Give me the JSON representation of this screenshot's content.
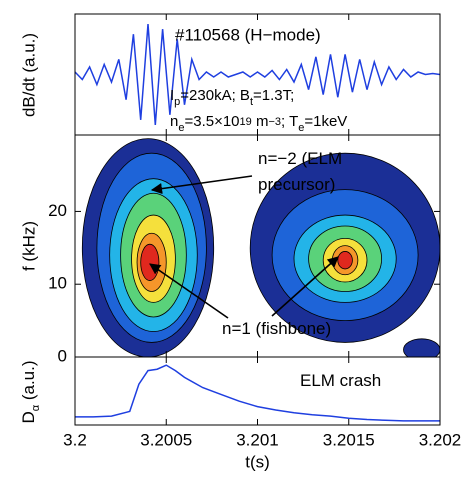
{
  "chart_data": [
    {
      "type": "line",
      "title": "#110568 (H−mode)",
      "y_label": "dB/dt (a.u.)",
      "annotations": [
        [
          "I",
          "p",
          "=230kA; B",
          "t",
          "=1.3T;"
        ],
        [
          "n",
          "e",
          "=3.5×10",
          "19",
          " m",
          "−3",
          "; T",
          "e",
          "=1keV"
        ]
      ],
      "x": [
        3.2,
        3.20004,
        3.20008,
        3.20012,
        3.20016,
        3.2002,
        3.20024,
        3.20028,
        3.20032,
        3.20036,
        3.2004,
        3.20044,
        3.20048,
        3.20052,
        3.20056,
        3.2006,
        3.20064,
        3.20068,
        3.20072,
        3.20076,
        3.2008,
        3.20084,
        3.20088,
        3.20092,
        3.20096,
        3.201,
        3.20104,
        3.20108,
        3.20112,
        3.20116,
        3.2012,
        3.20124,
        3.20128,
        3.20132,
        3.20136,
        3.2014,
        3.20144,
        3.20148,
        3.20152,
        3.20156,
        3.2016,
        3.20164,
        3.20168,
        3.20172,
        3.20176,
        3.2018,
        3.20184,
        3.20188,
        3.20192,
        3.20196,
        3.202
      ],
      "series": [
        {
          "color": "#1f3fe0",
          "values": [
            0.05,
            -0.1,
            0.15,
            -0.2,
            0.2,
            -0.15,
            0.3,
            -0.5,
            0.8,
            -0.9,
            1.0,
            -1.0,
            0.9,
            -0.8,
            0.7,
            -0.6,
            0.3,
            -0.1,
            0.05,
            -0.05,
            0.05,
            -0.05,
            0.0,
            0.05,
            -0.05,
            0.05,
            -0.05,
            0.08,
            -0.1,
            0.1,
            -0.15,
            0.2,
            -0.3,
            0.35,
            -0.4,
            0.4,
            -0.45,
            0.4,
            -0.35,
            0.3,
            -0.3,
            0.25,
            -0.2,
            0.15,
            -0.1,
            0.1,
            -0.05,
            0.05,
            0.0,
            0.02,
            0.0
          ]
        }
      ],
      "xlim": [
        3.2,
        3.202
      ],
      "ylim": [
        -1.2,
        1.2
      ]
    },
    {
      "type": "contour",
      "y_label": "f (kHz)",
      "annotations": [
        [
          "n=−2 (ELM"
        ],
        [
          "precursor)"
        ],
        [
          "n=1 (fishbone)"
        ]
      ],
      "contours": [
        {
          "t": 3.2004,
          "f": 15,
          "dt": 0.00036,
          "df": 15,
          "color": "#1b2f96"
        },
        {
          "t": 3.20042,
          "f": 15,
          "dt": 0.0003,
          "df": 13,
          "color": "#1e64d8"
        },
        {
          "t": 3.20043,
          "f": 14,
          "dt": 0.00024,
          "df": 10.5,
          "color": "#23b4e8"
        },
        {
          "t": 3.20043,
          "f": 14,
          "dt": 0.00018,
          "df": 8.5,
          "color": "#5ad27a"
        },
        {
          "t": 3.20043,
          "f": 13.5,
          "dt": 0.00012,
          "df": 6,
          "color": "#f5e03c"
        },
        {
          "t": 3.20042,
          "f": 13,
          "dt": 8e-05,
          "df": 4,
          "color": "#f5962a"
        },
        {
          "t": 3.20041,
          "f": 13,
          "dt": 5e-05,
          "df": 2.5,
          "color": "#e0281e"
        },
        {
          "t": 3.20148,
          "f": 15,
          "dt": 0.00052,
          "df": 13,
          "color": "#1b2f96"
        },
        {
          "t": 3.20148,
          "f": 14,
          "dt": 0.0004,
          "df": 9,
          "color": "#1e64d8"
        },
        {
          "t": 3.20148,
          "f": 13.5,
          "dt": 0.00028,
          "df": 6,
          "color": "#23b4e8"
        },
        {
          "t": 3.20148,
          "f": 13.5,
          "dt": 0.0002,
          "df": 4.5,
          "color": "#5ad27a"
        },
        {
          "t": 3.20148,
          "f": 13.3,
          "dt": 0.00012,
          "df": 3,
          "color": "#f5e03c"
        },
        {
          "t": 3.20148,
          "f": 13.3,
          "dt": 7e-05,
          "df": 2,
          "color": "#f5962a"
        },
        {
          "t": 3.20148,
          "f": 13.3,
          "dt": 4e-05,
          "df": 1.2,
          "color": "#e0281e"
        },
        {
          "t": 3.2019,
          "f": 1,
          "dt": 0.0001,
          "df": 1.5,
          "color": "#1b2f96"
        }
      ],
      "xlim": [
        3.2,
        3.202
      ],
      "ylim": [
        0,
        30.5
      ],
      "yticks": [
        0,
        10,
        20
      ]
    },
    {
      "type": "line",
      "y_label": [
        "D",
        "α",
        " (a.u.)"
      ],
      "x_label": "t(s)",
      "annotations": [
        [
          "ELM crash"
        ]
      ],
      "x": [
        3.2,
        3.2001,
        3.2002,
        3.2003,
        3.20035,
        3.2004,
        3.20045,
        3.2005,
        3.20055,
        3.2006,
        3.2007,
        3.2008,
        3.2009,
        3.201,
        3.2011,
        3.2012,
        3.2013,
        3.2014,
        3.2015,
        3.2016,
        3.2017,
        3.2018,
        3.2019,
        3.202
      ],
      "series": [
        {
          "color": "#1f3fe0",
          "values": [
            0.12,
            0.12,
            0.13,
            0.2,
            0.6,
            0.8,
            0.82,
            0.88,
            0.8,
            0.7,
            0.55,
            0.45,
            0.35,
            0.27,
            0.22,
            0.18,
            0.15,
            0.13,
            0.1,
            0.08,
            0.07,
            0.06,
            0.06,
            0.06
          ]
        }
      ],
      "xlim": [
        3.2,
        3.202
      ],
      "ylim": [
        0,
        1
      ],
      "xticks": [
        3.2,
        3.2005,
        3.201,
        3.2015,
        3.202
      ]
    }
  ]
}
